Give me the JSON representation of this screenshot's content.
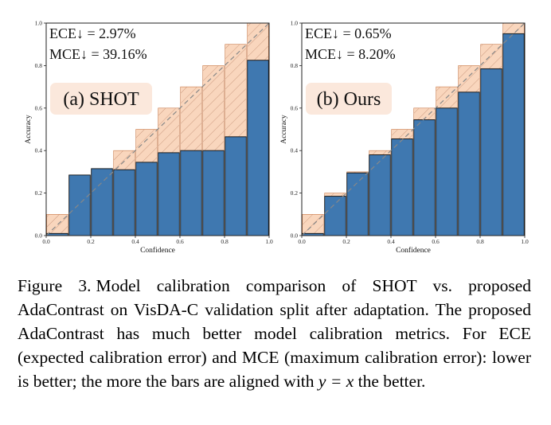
{
  "chart_data": [
    {
      "type": "bar",
      "title": "",
      "panel_label": "(a) SHOT",
      "xlabel": "Confidence",
      "ylabel": "Accuracy",
      "xlim": [
        0,
        1.0
      ],
      "ylim": [
        0,
        1.0
      ],
      "x_ticks": [
        "0.0",
        "0.2",
        "0.4",
        "0.6",
        "0.8",
        "1.0"
      ],
      "y_ticks": [
        "0.0",
        "0.2",
        "0.4",
        "0.6",
        "0.8",
        "1.0"
      ],
      "metrics": [
        "ECE↓ = 2.97%",
        "MCE↓ = 39.16%"
      ],
      "bins": [
        0.05,
        0.15,
        0.25,
        0.35,
        0.45,
        0.55,
        0.65,
        0.75,
        0.85,
        0.95
      ],
      "accuracy": [
        0.01,
        0.285,
        0.315,
        0.31,
        0.345,
        0.39,
        0.4,
        0.4,
        0.465,
        0.825
      ],
      "gap_to": [
        0.1,
        0.2,
        0.3,
        0.4,
        0.5,
        0.6,
        0.7,
        0.8,
        0.9,
        1.0
      ],
      "series": [
        {
          "name": "Outputs",
          "color": "#3f78b0"
        },
        {
          "name": "Gap",
          "color": "#f9d6bd"
        }
      ],
      "reference_line": "y = x",
      "grid": false,
      "legend": "none"
    },
    {
      "type": "bar",
      "title": "",
      "panel_label": "(b) Ours",
      "xlabel": "Confidence",
      "ylabel": "Accuracy",
      "xlim": [
        0,
        1.0
      ],
      "ylim": [
        0,
        1.0
      ],
      "x_ticks": [
        "0.0",
        "0.2",
        "0.4",
        "0.6",
        "0.8",
        "1.0"
      ],
      "y_ticks": [
        "0.0",
        "0.2",
        "0.4",
        "0.6",
        "0.8",
        "1.0"
      ],
      "metrics": [
        "ECE↓ = 0.65%",
        "MCE↓ = 8.20%"
      ],
      "bins": [
        0.05,
        0.15,
        0.25,
        0.35,
        0.45,
        0.55,
        0.65,
        0.75,
        0.85,
        0.95
      ],
      "accuracy": [
        0.01,
        0.185,
        0.295,
        0.38,
        0.455,
        0.545,
        0.6,
        0.675,
        0.785,
        0.95
      ],
      "gap_to": [
        0.1,
        0.2,
        0.3,
        0.4,
        0.5,
        0.6,
        0.7,
        0.8,
        0.9,
        1.0
      ],
      "series": [
        {
          "name": "Outputs",
          "color": "#3f78b0"
        },
        {
          "name": "Gap",
          "color": "#f9d6bd"
        }
      ],
      "reference_line": "y = x",
      "grid": false,
      "legend": "none"
    }
  ],
  "caption": {
    "label": "Figure 3.",
    "text_1": "Model calibration comparison of SHOT vs. proposed AdaContrast on VisDA-C validation split after adaptation. The proposed AdaContrast has much better model calibration metrics. For ECE (expected calibration error) and MCE (maximum calibration error): lower is better; the more the bars are aligned with ",
    "math": "y = x",
    "text_2": " the better."
  }
}
